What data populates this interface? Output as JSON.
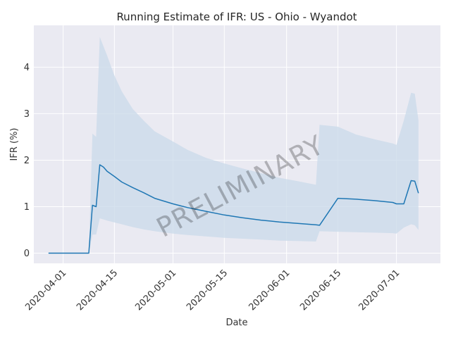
{
  "chart_data": {
    "type": "line",
    "title": "Running Estimate of IFR: US - Ohio - Wyandot",
    "xlabel": "Date",
    "ylabel": "IFR (%)",
    "watermark": "PRELIMINARY",
    "x_range": [
      "2020-03-24",
      "2020-07-13"
    ],
    "ylim": [
      -0.22,
      4.9
    ],
    "grid": true,
    "x_ticks": [
      "2020-04-01",
      "2020-04-15",
      "2020-05-01",
      "2020-05-15",
      "2020-06-01",
      "2020-06-15",
      "2020-07-01"
    ],
    "y_ticks": [
      0,
      1,
      2,
      3,
      4
    ],
    "colors": {
      "background": "#eaeaf2",
      "line": "#1f77b4",
      "band": "#c9d9ea"
    },
    "series": [
      {
        "type": "line",
        "x": [
          "2020-03-28",
          "2020-04-08",
          "2020-04-09",
          "2020-04-10",
          "2020-04-11",
          "2020-04-12",
          "2020-04-13",
          "2020-04-15",
          "2020-04-17",
          "2020-04-20",
          "2020-04-23",
          "2020-04-26",
          "2020-05-01",
          "2020-05-05",
          "2020-05-10",
          "2020-05-15",
          "2020-05-20",
          "2020-05-25",
          "2020-05-30",
          "2020-06-04",
          "2020-06-09",
          "2020-06-10",
          "2020-06-15",
          "2020-06-20",
          "2020-06-25",
          "2020-06-30",
          "2020-07-01",
          "2020-07-03",
          "2020-07-05",
          "2020-07-06",
          "2020-07-07"
        ],
        "y": [
          0,
          0,
          1.03,
          1.0,
          1.9,
          1.85,
          1.76,
          1.65,
          1.53,
          1.41,
          1.3,
          1.18,
          1.06,
          0.98,
          0.9,
          0.82,
          0.76,
          0.71,
          0.67,
          0.64,
          0.61,
          0.6,
          1.18,
          1.16,
          1.13,
          1.09,
          1.06,
          1.06,
          1.56,
          1.55,
          1.29
        ]
      },
      {
        "type": "band",
        "x": [
          "2020-04-08",
          "2020-04-09",
          "2020-04-10",
          "2020-04-11",
          "2020-04-13",
          "2020-04-15",
          "2020-04-17",
          "2020-04-20",
          "2020-04-23",
          "2020-04-26",
          "2020-05-01",
          "2020-05-05",
          "2020-05-10",
          "2020-05-15",
          "2020-05-20",
          "2020-05-25",
          "2020-05-30",
          "2020-06-04",
          "2020-06-09",
          "2020-06-10",
          "2020-06-15",
          "2020-06-20",
          "2020-06-25",
          "2020-06-30",
          "2020-07-01",
          "2020-07-03",
          "2020-07-05",
          "2020-07-06",
          "2020-07-07"
        ],
        "upper": [
          0,
          2.57,
          2.5,
          4.65,
          4.25,
          3.82,
          3.48,
          3.1,
          2.85,
          2.62,
          2.4,
          2.22,
          2.05,
          1.93,
          1.82,
          1.72,
          1.62,
          1.55,
          1.47,
          2.76,
          2.72,
          2.55,
          2.45,
          2.36,
          2.33,
          2.85,
          3.45,
          3.43,
          2.86
        ],
        "lower": [
          0,
          0.4,
          0.4,
          0.75,
          0.7,
          0.66,
          0.62,
          0.56,
          0.51,
          0.47,
          0.42,
          0.39,
          0.36,
          0.33,
          0.31,
          0.29,
          0.27,
          0.26,
          0.25,
          0.47,
          0.46,
          0.45,
          0.44,
          0.43,
          0.42,
          0.55,
          0.62,
          0.6,
          0.5
        ]
      }
    ]
  }
}
